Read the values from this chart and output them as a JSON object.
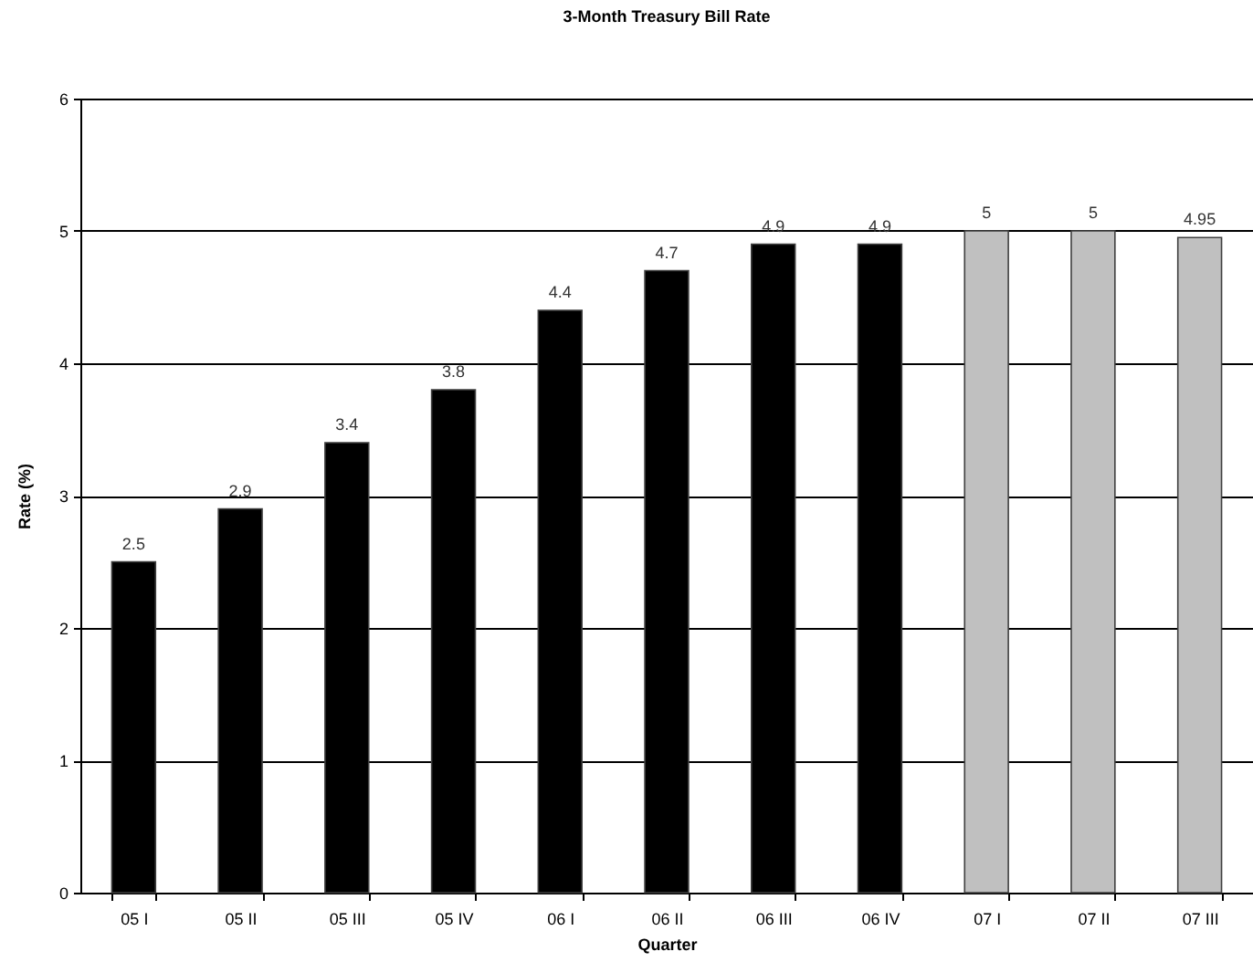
{
  "chart_data": {
    "type": "bar",
    "title": "3-Month Treasury Bill Rate",
    "xlabel": "Quarter",
    "ylabel": "Rate (%)",
    "categories": [
      "05 I",
      "05 II",
      "05 III",
      "05 IV",
      "06 I",
      "06 II",
      "06 III",
      "06 IV",
      "07 I",
      "07 II",
      "07 III"
    ],
    "values": [
      2.5,
      2.9,
      3.4,
      3.8,
      4.4,
      4.7,
      4.9,
      4.9,
      5,
      5,
      4.95
    ],
    "colors": [
      "#000000",
      "#000000",
      "#000000",
      "#000000",
      "#000000",
      "#000000",
      "#000000",
      "#000000",
      "#c0c0c0",
      "#c0c0c0",
      "#c0c0c0"
    ],
    "ylim": [
      0,
      6
    ],
    "yticks": [
      0,
      1,
      2,
      3,
      4,
      5,
      6
    ],
    "grid": "y",
    "data_labels": true
  }
}
